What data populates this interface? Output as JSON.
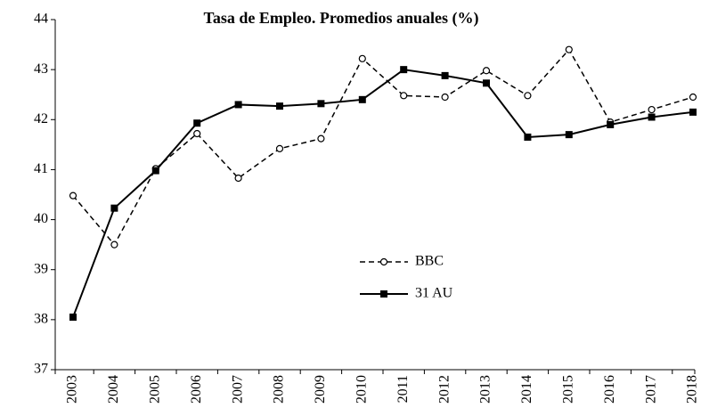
{
  "chart_data": {
    "type": "line",
    "title": "Tasa de Empleo. Promedios anuales (%)",
    "categories": [
      "2003",
      "2004",
      "2005",
      "2006",
      "2007",
      "2008",
      "2009",
      "2010",
      "2011",
      "2012",
      "2013",
      "2014",
      "2015",
      "2016",
      "2017",
      "2018"
    ],
    "series": [
      {
        "name": "BBC",
        "color": "#000000",
        "dashed": true,
        "marker": "circle",
        "values": [
          40.48,
          39.5,
          41.02,
          41.72,
          40.83,
          41.42,
          41.62,
          43.22,
          42.48,
          42.45,
          42.98,
          42.48,
          43.4,
          41.95,
          42.2,
          42.45
        ]
      },
      {
        "name": "31 AU",
        "color": "#000000",
        "dashed": false,
        "marker": "square",
        "values": [
          38.05,
          40.23,
          40.98,
          41.93,
          42.3,
          42.27,
          42.32,
          42.4,
          43.0,
          42.88,
          42.73,
          41.65,
          41.7,
          41.9,
          42.05,
          42.15
        ]
      }
    ],
    "ylim": [
      37,
      44
    ],
    "yticks": [
      37,
      38,
      39,
      40,
      41,
      42,
      43,
      44
    ],
    "grid": false
  }
}
